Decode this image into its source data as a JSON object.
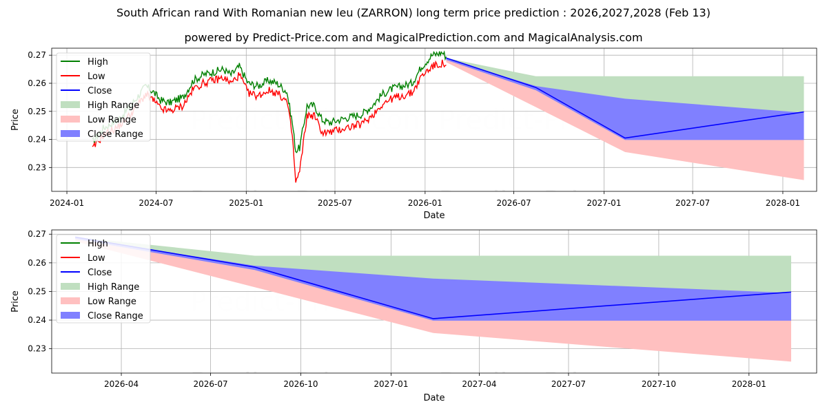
{
  "title": "South African rand With Romanian new leu (ZARRON) long term price prediction : 2026,2027,2028 (Feb 13)",
  "subtitle": "powered by Predict-Price.com and MagicalPrediction.com and MagicalAnalysis.com",
  "watermark": "Predict-Price.com",
  "colors": {
    "high": "#008000",
    "low": "#ff0000",
    "close": "#0000ff",
    "high_range": "#c0dfc0",
    "low_range": "#ffc0c0",
    "close_range": "#8080ff",
    "grid": "#b0b0b0"
  },
  "chart_data": [
    {
      "type": "line",
      "name": "long-term",
      "xlabel": "Date",
      "ylabel": "Price",
      "xlim": [
        "2023-12-01",
        "2028-03-10"
      ],
      "ylim": [
        0.2215,
        0.2725
      ],
      "x_ticks": [
        "2024-01",
        "2024-07",
        "2025-01",
        "2025-07",
        "2026-01",
        "2026-07",
        "2027-01",
        "2027-07",
        "2028-01"
      ],
      "y_ticks": [
        0.23,
        0.24,
        0.25,
        0.26,
        0.27
      ],
      "legend": [
        "High",
        "Low",
        "Close",
        "High Range",
        "Low Range",
        "Close Range"
      ],
      "legend_position": "top-left",
      "history": {
        "dates": [
          "2024-02-22",
          "2024-03-15",
          "2024-04-15",
          "2024-05-10",
          "2024-06-10",
          "2024-06-25",
          "2024-07-10",
          "2024-07-28",
          "2024-08-10",
          "2024-08-25",
          "2024-09-15",
          "2024-10-05",
          "2024-10-25",
          "2024-11-15",
          "2024-12-01",
          "2024-12-18",
          "2025-01-05",
          "2025-01-25",
          "2025-02-15",
          "2025-03-05",
          "2025-03-25",
          "2025-04-05",
          "2025-04-12",
          "2025-04-20",
          "2025-05-05",
          "2025-05-20",
          "2025-06-05",
          "2025-06-20",
          "2025-07-10",
          "2025-08-01",
          "2025-08-25",
          "2025-09-15",
          "2025-10-05",
          "2025-10-25",
          "2025-11-15",
          "2025-12-05",
          "2025-12-25",
          "2026-01-15",
          "2026-02-05",
          "2026-02-13"
        ],
        "high": [
          0.239,
          0.244,
          0.247,
          0.252,
          0.259,
          0.257,
          0.254,
          0.253,
          0.254,
          0.255,
          0.261,
          0.263,
          0.264,
          0.265,
          0.263,
          0.266,
          0.26,
          0.259,
          0.261,
          0.26,
          0.257,
          0.246,
          0.236,
          0.237,
          0.252,
          0.252,
          0.247,
          0.246,
          0.247,
          0.248,
          0.249,
          0.252,
          0.256,
          0.258,
          0.259,
          0.26,
          0.266,
          0.27,
          0.271,
          0.2695
        ],
        "low": [
          0.2365,
          0.2415,
          0.2445,
          0.249,
          0.256,
          0.254,
          0.251,
          0.25,
          0.251,
          0.252,
          0.258,
          0.26,
          0.261,
          0.262,
          0.26,
          0.263,
          0.2565,
          0.2555,
          0.2575,
          0.2565,
          0.2535,
          0.2415,
          0.2245,
          0.2285,
          0.2485,
          0.2485,
          0.2425,
          0.2425,
          0.2435,
          0.2445,
          0.2455,
          0.2485,
          0.2525,
          0.2545,
          0.2555,
          0.2565,
          0.2625,
          0.266,
          0.267,
          0.2665
        ]
      },
      "forecast": {
        "dates": [
          "2026-02-13",
          "2026-08-15",
          "2027-02-13",
          "2028-02-13"
        ],
        "close": [
          0.269,
          0.2585,
          0.2405,
          0.2498
        ],
        "high_range_upper": [
          0.269,
          0.2625,
          0.2625,
          0.2625
        ],
        "close_range_upper": [
          0.2688,
          0.259,
          0.2545,
          0.2495
        ],
        "close_range_lower": [
          0.2683,
          0.2575,
          0.2398,
          0.2398
        ],
        "low_range_lower": [
          0.2675,
          0.2515,
          0.2355,
          0.2255
        ]
      }
    },
    {
      "type": "line",
      "name": "zoomed-forecast",
      "xlabel": "Date",
      "ylabel": "Price",
      "xlim": [
        "2026-01-20",
        "2028-03-10"
      ],
      "ylim": [
        0.2215,
        0.2715
      ],
      "x_ticks": [
        "2026-04",
        "2026-07",
        "2026-10",
        "2027-01",
        "2027-04",
        "2027-07",
        "2027-10",
        "2028-01"
      ],
      "y_ticks": [
        0.23,
        0.24,
        0.25,
        0.26,
        0.27
      ],
      "legend": [
        "High",
        "Low",
        "Close",
        "High Range",
        "Low Range",
        "Close Range"
      ],
      "legend_position": "top-left",
      "forecast": {
        "dates": [
          "2026-02-13",
          "2026-08-15",
          "2027-02-13",
          "2028-02-13"
        ],
        "close": [
          0.269,
          0.2585,
          0.2405,
          0.2498
        ],
        "high_range_upper": [
          0.269,
          0.2625,
          0.2625,
          0.2625
        ],
        "close_range_upper": [
          0.2688,
          0.259,
          0.2545,
          0.2495
        ],
        "close_range_lower": [
          0.2683,
          0.2575,
          0.2398,
          0.2398
        ],
        "low_range_lower": [
          0.2675,
          0.2515,
          0.2355,
          0.2255
        ]
      }
    }
  ]
}
